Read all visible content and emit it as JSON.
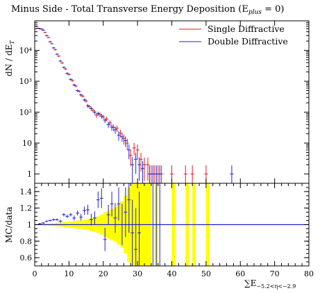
{
  "title": "Minus Side - Total Transverse Energy Deposition (E",
  "title_sub": "plus",
  "title_tail": " = 0)",
  "colors": {
    "single": "#e31a1c",
    "double": "#2020d0",
    "band": "#ffff00",
    "axis": "#000000"
  },
  "chart_data": [
    {
      "type": "scatter",
      "ylabel": "dN / dE",
      "ylabel_sub": "T",
      "log_y": true,
      "xlim": [
        0,
        80
      ],
      "ylim": [
        0.5,
        90000
      ],
      "y_ticks": [
        "1",
        "10",
        "10²",
        "10³",
        "10⁴"
      ],
      "y_tick_values": [
        1,
        10,
        100,
        1000,
        10000
      ],
      "legend_position": "top-right",
      "series": [
        {
          "name": "Single Diffractive",
          "points": [
            {
              "x": 1,
              "y": 52000,
              "e": 3000
            },
            {
              "x": 2,
              "y": 49000,
              "e": 2800
            },
            {
              "x": 3,
              "y": 38000,
              "e": 2200
            },
            {
              "x": 4,
              "y": 26000,
              "e": 1500
            },
            {
              "x": 5,
              "y": 16500,
              "e": 1000
            },
            {
              "x": 6,
              "y": 10500,
              "e": 700
            },
            {
              "x": 7,
              "y": 6500,
              "e": 450
            },
            {
              "x": 8,
              "y": 3900,
              "e": 280
            },
            {
              "x": 9,
              "y": 2500,
              "e": 190
            },
            {
              "x": 10,
              "y": 1650,
              "e": 130
            },
            {
              "x": 11,
              "y": 1050,
              "e": 90
            },
            {
              "x": 12,
              "y": 700,
              "e": 65
            },
            {
              "x": 13,
              "y": 470,
              "e": 45
            },
            {
              "x": 14,
              "y": 330,
              "e": 35
            },
            {
              "x": 15,
              "y": 230,
              "e": 28
            },
            {
              "x": 16,
              "y": 150,
              "e": 20
            },
            {
              "x": 17,
              "y": 115,
              "e": 17
            },
            {
              "x": 18,
              "y": 80,
              "e": 13
            },
            {
              "x": 19,
              "y": 85,
              "e": 14
            },
            {
              "x": 20,
              "y": 70,
              "e": 12
            },
            {
              "x": 21,
              "y": 60,
              "e": 11
            },
            {
              "x": 22,
              "y": 45,
              "e": 9
            },
            {
              "x": 23,
              "y": 32,
              "e": 8
            },
            {
              "x": 24,
              "y": 30,
              "e": 7
            },
            {
              "x": 25,
              "y": 21,
              "e": 6
            },
            {
              "x": 26,
              "y": 14,
              "e": 5
            },
            {
              "x": 27,
              "y": 10,
              "e": 4
            },
            {
              "x": 28,
              "y": 4,
              "e": 2.2
            },
            {
              "x": 29,
              "y": 7,
              "e": 3
            },
            {
              "x": 30,
              "y": 6,
              "e": 3
            },
            {
              "x": 31,
              "y": 3,
              "e": 1.8
            },
            {
              "x": 32,
              "y": 2,
              "e": 1.4
            },
            {
              "x": 33,
              "y": 2,
              "e": 1.4
            },
            {
              "x": 34,
              "y": 1,
              "e": 0.9
            },
            {
              "x": 35,
              "y": 1,
              "e": 0.9
            },
            {
              "x": 36,
              "y": 1,
              "e": 0.9
            },
            {
              "x": 37,
              "y": 1,
              "e": 0.9
            },
            {
              "x": 40,
              "y": 1,
              "e": 0.9
            },
            {
              "x": 44,
              "y": 1,
              "e": 0.9
            },
            {
              "x": 46,
              "y": 1,
              "e": 0.9
            },
            {
              "x": 50,
              "y": 1,
              "e": 0.9
            }
          ]
        },
        {
          "name": "Double Diffractive",
          "points": [
            {
              "x": 0.5,
              "y": 60000,
              "e": 3000
            },
            {
              "x": 1.5,
              "y": 50000,
              "e": 2800
            },
            {
              "x": 2.5,
              "y": 45000,
              "e": 2500
            },
            {
              "x": 3.5,
              "y": 30000,
              "e": 1800
            },
            {
              "x": 4.5,
              "y": 19000,
              "e": 1200
            },
            {
              "x": 5.5,
              "y": 12000,
              "e": 800
            },
            {
              "x": 6.5,
              "y": 7500,
              "e": 500
            },
            {
              "x": 7.5,
              "y": 4500,
              "e": 320
            },
            {
              "x": 8.5,
              "y": 2800,
              "e": 210
            },
            {
              "x": 9.5,
              "y": 1800,
              "e": 140
            },
            {
              "x": 10.5,
              "y": 1150,
              "e": 100
            },
            {
              "x": 11.5,
              "y": 760,
              "e": 70
            },
            {
              "x": 12.5,
              "y": 500,
              "e": 50
            },
            {
              "x": 13.5,
              "y": 360,
              "e": 38
            },
            {
              "x": 14.5,
              "y": 250,
              "e": 30
            },
            {
              "x": 15.5,
              "y": 160,
              "e": 22
            },
            {
              "x": 16.5,
              "y": 130,
              "e": 18
            },
            {
              "x": 17.5,
              "y": 100,
              "e": 15
            },
            {
              "x": 18.5,
              "y": 90,
              "e": 14
            },
            {
              "x": 19.5,
              "y": 75,
              "e": 13
            },
            {
              "x": 20.5,
              "y": 55,
              "e": 10
            },
            {
              "x": 21.5,
              "y": 40,
              "e": 9
            },
            {
              "x": 22.5,
              "y": 33,
              "e": 8
            },
            {
              "x": 23.5,
              "y": 27,
              "e": 7
            },
            {
              "x": 24.5,
              "y": 18,
              "e": 6
            },
            {
              "x": 25.5,
              "y": 16,
              "e": 5
            },
            {
              "x": 26.5,
              "y": 12,
              "e": 4.5
            },
            {
              "x": 27.5,
              "y": 6,
              "e": 3
            },
            {
              "x": 28.5,
              "y": 2,
              "e": 1.5
            },
            {
              "x": 29.5,
              "y": 3,
              "e": 2
            },
            {
              "x": 30.5,
              "y": 2,
              "e": 1.4
            },
            {
              "x": 31.5,
              "y": 1.5,
              "e": 1.1
            },
            {
              "x": 33.5,
              "y": 1,
              "e": 0.9
            },
            {
              "x": 34.5,
              "y": 1,
              "e": 0.9
            },
            {
              "x": 35.5,
              "y": 1,
              "e": 0.9
            },
            {
              "x": 36.5,
              "y": 1,
              "e": 0.9
            },
            {
              "x": 57.5,
              "y": 1,
              "e": 0.9
            }
          ]
        }
      ]
    },
    {
      "type": "scatter",
      "ylabel": "MC/data",
      "xlabel": "∑E",
      "xlabel_sub": "−5.2<η<−2.9",
      "xlim": [
        0,
        80
      ],
      "ylim": [
        0.5,
        1.5
      ],
      "x_ticks": [
        0,
        10,
        20,
        30,
        40,
        50,
        60,
        70,
        80
      ],
      "y_ticks": [
        0.6,
        0.8,
        1,
        1.2,
        1.4
      ],
      "reference_line": 1,
      "band": [
        {
          "x0": 0,
          "x1": 2,
          "h": 0.005
        },
        {
          "x0": 2,
          "x1": 4,
          "h": 0.01
        },
        {
          "x0": 4,
          "x1": 6,
          "h": 0.015
        },
        {
          "x0": 6,
          "x1": 8,
          "h": 0.02
        },
        {
          "x0": 8,
          "x1": 10,
          "h": 0.03
        },
        {
          "x0": 10,
          "x1": 12,
          "h": 0.04
        },
        {
          "x0": 12,
          "x1": 14,
          "h": 0.05
        },
        {
          "x0": 14,
          "x1": 16,
          "h": 0.06
        },
        {
          "x0": 16,
          "x1": 18,
          "h": 0.08
        },
        {
          "x0": 18,
          "x1": 19,
          "h": 0.1
        },
        {
          "x0": 19,
          "x1": 20,
          "h": 0.12
        },
        {
          "x0": 20,
          "x1": 21,
          "h": 0.15
        },
        {
          "x0": 21,
          "x1": 22,
          "h": 0.17
        },
        {
          "x0": 22,
          "x1": 23,
          "h": 0.19
        },
        {
          "x0": 23,
          "x1": 24,
          "h": 0.21
        },
        {
          "x0": 24,
          "x1": 25,
          "h": 0.24
        },
        {
          "x0": 25,
          "x1": 26,
          "h": 0.28
        },
        {
          "x0": 26,
          "x1": 27,
          "h": 0.35
        },
        {
          "x0": 27,
          "x1": 28,
          "h": 0.45
        },
        {
          "x0": 28,
          "x1": 31,
          "h": 1
        },
        {
          "x0": 31,
          "x1": 32,
          "h": 0.5
        },
        {
          "x0": 32,
          "x1": 33,
          "h": 1
        },
        {
          "x0": 33,
          "x1": 34,
          "h": 0.7
        },
        {
          "x0": 35,
          "x1": 36,
          "h": 1
        },
        {
          "x0": 40,
          "x1": 41,
          "h": 1
        },
        {
          "x0": 44,
          "x1": 45,
          "h": 1
        },
        {
          "x0": 46,
          "x1": 47,
          "h": 1
        },
        {
          "x0": 50,
          "x1": 51,
          "h": 1
        }
      ],
      "points": [
        {
          "x": 1.5,
          "y": 1.01,
          "e": 0.01
        },
        {
          "x": 2.5,
          "y": 1.02,
          "e": 0.01
        },
        {
          "x": 3.5,
          "y": 1.04,
          "e": 0.01
        },
        {
          "x": 4.5,
          "y": 1.05,
          "e": 0.01
        },
        {
          "x": 5.5,
          "y": 1.06,
          "e": 0.015
        },
        {
          "x": 6.5,
          "y": 1.06,
          "e": 0.015
        },
        {
          "x": 7.5,
          "y": 1.04,
          "e": 0.02
        },
        {
          "x": 8.5,
          "y": 1.12,
          "e": 0.02
        },
        {
          "x": 9.5,
          "y": 1.1,
          "e": 0.02
        },
        {
          "x": 10.5,
          "y": 1.12,
          "e": 0.02
        },
        {
          "x": 11.5,
          "y": 1.08,
          "e": 0.03
        },
        {
          "x": 12.5,
          "y": 1.14,
          "e": 0.03
        },
        {
          "x": 13.5,
          "y": 1.09,
          "e": 0.04
        },
        {
          "x": 14.5,
          "y": 1.17,
          "e": 0.05
        },
        {
          "x": 15.5,
          "y": 1.18,
          "e": 0.06
        },
        {
          "x": 16.5,
          "y": 1.06,
          "e": 0.07
        },
        {
          "x": 17.5,
          "y": 1.08,
          "e": 0.08
        },
        {
          "x": 18.5,
          "y": 1.3,
          "e": 0.1
        },
        {
          "x": 19.5,
          "y": 1.32,
          "e": 0.12
        },
        {
          "x": 20.5,
          "y": 0.82,
          "e": 0.14
        },
        {
          "x": 21.5,
          "y": 1.12,
          "e": 0.12
        },
        {
          "x": 22.5,
          "y": 1.25,
          "e": 0.15
        },
        {
          "x": 23.5,
          "y": 1.08,
          "e": 0.18
        },
        {
          "x": 24.5,
          "y": 1.25,
          "e": 0.2
        },
        {
          "x": 25.5,
          "y": 1.0,
          "e": 0.25
        },
        {
          "x": 26.5,
          "y": 1.15,
          "e": 0.3
        },
        {
          "x": 27.5,
          "y": 1.3,
          "e": 0.4
        },
        {
          "x": 28.5,
          "y": 0.9,
          "e": 0.4
        },
        {
          "x": 29.5,
          "y": 0.7,
          "e": 0.5
        },
        {
          "x": 30.5,
          "y": 0.9,
          "e": 0.5
        },
        {
          "x": 34.5,
          "y": 1.0,
          "e": 1
        },
        {
          "x": 35.5,
          "y": 1.0,
          "e": 1
        },
        {
          "x": 36.5,
          "y": 1.0,
          "e": 1
        }
      ]
    }
  ]
}
